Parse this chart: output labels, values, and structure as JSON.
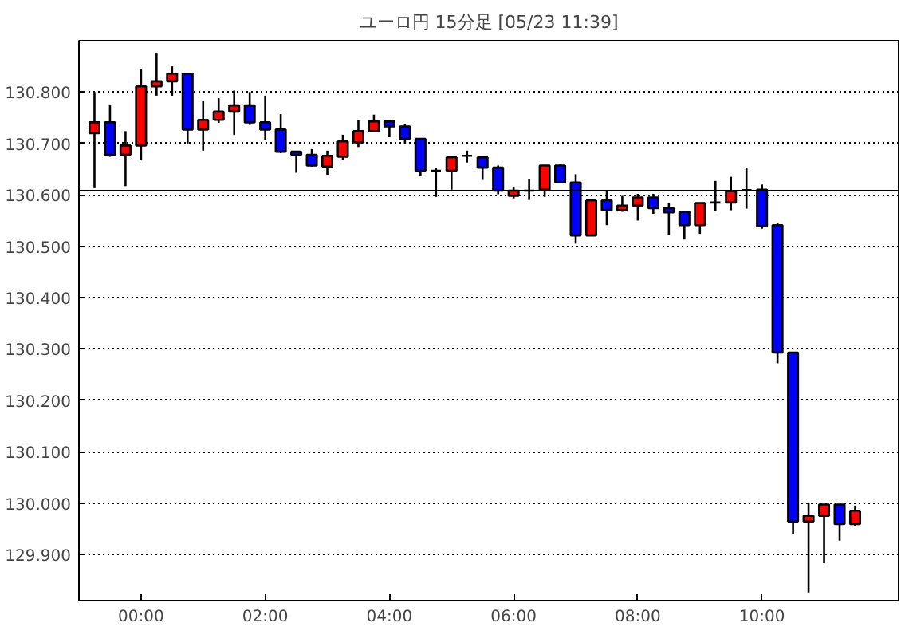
{
  "chart_data": {
    "type": "candlestick",
    "title": "ユーロ円 15分足 [05/23 11:39]",
    "x": [
      -0.75,
      -0.5,
      -0.25,
      0,
      0.25,
      0.5,
      0.75,
      1,
      1.25,
      1.5,
      1.75,
      2,
      2.25,
      2.5,
      2.75,
      3,
      3.25,
      3.5,
      3.75,
      4,
      4.25,
      4.5,
      4.75,
      5,
      5.25,
      5.5,
      5.75,
      6,
      6.25,
      6.5,
      6.75,
      7,
      7.25,
      7.5,
      7.75,
      8,
      8.25,
      8.5,
      8.75,
      9,
      9.25,
      9.5,
      9.75,
      10,
      10.25,
      10.5,
      10.75,
      11,
      11.25,
      11.5
    ],
    "ohlc": [
      [
        130.72,
        130.8,
        130.613,
        130.741
      ],
      [
        130.741,
        130.776,
        130.674,
        130.678
      ],
      [
        130.678,
        130.724,
        130.617,
        130.696
      ],
      [
        130.696,
        130.844,
        130.667,
        130.811
      ],
      [
        130.811,
        130.875,
        130.793,
        130.821
      ],
      [
        130.821,
        130.85,
        130.793,
        130.836
      ],
      [
        130.836,
        130.836,
        130.7,
        130.727
      ],
      [
        130.727,
        130.782,
        130.686,
        130.746
      ],
      [
        130.746,
        130.788,
        130.74,
        130.762
      ],
      [
        130.762,
        130.803,
        130.717,
        130.774
      ],
      [
        130.774,
        130.8,
        130.736,
        130.741
      ],
      [
        130.741,
        130.793,
        130.707,
        130.727
      ],
      [
        130.727,
        130.757,
        130.681,
        130.684
      ],
      [
        130.684,
        130.684,
        130.643,
        130.678
      ],
      [
        130.678,
        130.689,
        130.655,
        130.657
      ],
      [
        130.655,
        130.686,
        130.639,
        130.676
      ],
      [
        130.674,
        130.717,
        130.667,
        130.704
      ],
      [
        130.702,
        130.745,
        130.693,
        130.724
      ],
      [
        130.724,
        130.756,
        130.724,
        130.743
      ],
      [
        130.743,
        130.743,
        130.712,
        130.733
      ],
      [
        130.733,
        130.738,
        130.699,
        130.709
      ],
      [
        130.709,
        130.709,
        130.636,
        130.647
      ],
      [
        130.647,
        130.653,
        130.596,
        130.647
      ],
      [
        130.647,
        130.673,
        130.61,
        130.673
      ],
      [
        130.676,
        130.686,
        130.663,
        130.676
      ],
      [
        130.673,
        130.673,
        130.629,
        130.653
      ],
      [
        130.653,
        130.657,
        130.601,
        130.608
      ],
      [
        130.598,
        130.616,
        130.593,
        130.608
      ],
      [
        130.608,
        130.631,
        130.59,
        130.608
      ],
      [
        130.61,
        130.657,
        130.596,
        130.657
      ],
      [
        130.657,
        130.66,
        130.622,
        130.624
      ],
      [
        130.624,
        130.64,
        130.505,
        130.521
      ],
      [
        130.521,
        130.591,
        130.521,
        130.589
      ],
      [
        130.589,
        130.607,
        130.541,
        130.57
      ],
      [
        130.57,
        130.598,
        130.567,
        130.579
      ],
      [
        130.579,
        130.602,
        130.55,
        130.595
      ],
      [
        130.595,
        130.602,
        130.563,
        130.574
      ],
      [
        130.574,
        130.584,
        130.522,
        130.566
      ],
      [
        130.567,
        130.567,
        130.513,
        130.541
      ],
      [
        130.541,
        130.584,
        130.524,
        130.584
      ],
      [
        130.585,
        130.627,
        130.568,
        130.585
      ],
      [
        130.585,
        130.635,
        130.57,
        130.607
      ],
      [
        130.609,
        130.653,
        130.573,
        130.609
      ],
      [
        130.61,
        130.62,
        130.534,
        130.539
      ],
      [
        130.541,
        130.545,
        130.272,
        130.293
      ],
      [
        130.293,
        130.293,
        129.94,
        129.964
      ],
      [
        129.964,
        130.0,
        129.826,
        129.975
      ],
      [
        129.975,
        129.997,
        129.883,
        129.997
      ],
      [
        129.997,
        129.997,
        129.927,
        129.959
      ],
      [
        129.959,
        129.995,
        129.956,
        129.985
      ]
    ],
    "colors": [
      "#ff0000",
      "#0000ff",
      "#ff0000",
      "#ff0000",
      "#ff0000",
      "#ff0000",
      "#0000ff",
      "#ff0000",
      "#ff0000",
      "#ff0000",
      "#0000ff",
      "#0000ff",
      "#0000ff",
      "#0000ff",
      "#0000ff",
      "#ff0000",
      "#ff0000",
      "#ff0000",
      "#ff0000",
      "#0000ff",
      "#0000ff",
      "#0000ff",
      "#000000",
      "#ff0000",
      "#000000",
      "#0000ff",
      "#0000ff",
      "#ff0000",
      "#000000",
      "#ff0000",
      "#0000ff",
      "#0000ff",
      "#ff0000",
      "#0000ff",
      "#ff0000",
      "#ff0000",
      "#0000ff",
      "#0000ff",
      "#0000ff",
      "#ff0000",
      "#000000",
      "#ff0000",
      "#000000",
      "#0000ff",
      "#0000ff",
      "#0000ff",
      "#ff0000",
      "#ff0000",
      "#0000ff",
      "#ff0000"
    ],
    "xlim": [
      -1,
      12.2
    ],
    "ylim": [
      129.81,
      130.9
    ],
    "xticks": [
      {
        "value": 0,
        "label": "00:00"
      },
      {
        "value": 2,
        "label": "02:00"
      },
      {
        "value": 4,
        "label": "04:00"
      },
      {
        "value": 6,
        "label": "06:00"
      },
      {
        "value": 8,
        "label": "08:00"
      },
      {
        "value": 10,
        "label": "10:00"
      }
    ],
    "yticks": [
      {
        "value": 129.9,
        "label": "129.900"
      },
      {
        "value": 130.0,
        "label": "130.000"
      },
      {
        "value": 130.1,
        "label": "130.100"
      },
      {
        "value": 130.2,
        "label": "130.200"
      },
      {
        "value": 130.3,
        "label": "130.300"
      },
      {
        "value": 130.4,
        "label": "130.400"
      },
      {
        "value": 130.5,
        "label": "130.500"
      },
      {
        "value": 130.6,
        "label": "130.600"
      },
      {
        "value": 130.7,
        "label": "130.700"
      },
      {
        "value": 130.8,
        "label": "130.800"
      }
    ],
    "ref_lines": [
      {
        "axis": "y",
        "value": 130.608,
        "color": "#000000",
        "line_style": "solid"
      }
    ],
    "grid": "y"
  }
}
